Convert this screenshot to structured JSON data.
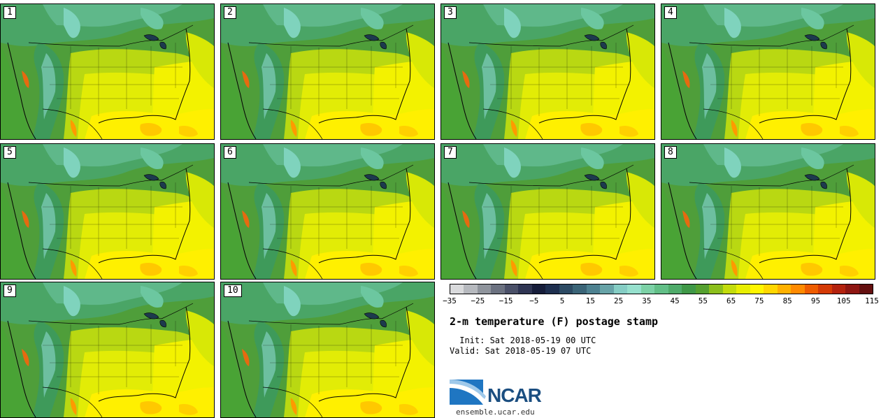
{
  "figure": {
    "title": "2-m temperature (F) postage stamp",
    "init_label": " Init: Sat 2018-05-19 00 UTC",
    "valid_label": "Valid: Sat 2018-05-19 07 UTC"
  },
  "members": [
    "1",
    "2",
    "3",
    "4",
    "5",
    "6",
    "7",
    "8",
    "9",
    "10"
  ],
  "colorbar": {
    "tick_labels": [
      "−35",
      "−25",
      "−15",
      "−5",
      "5",
      "15",
      "25",
      "35",
      "45",
      "55",
      "65",
      "75",
      "85",
      "95",
      "105",
      "115"
    ],
    "colors": [
      "#d9dadc",
      "#b6b9be",
      "#8f949c",
      "#6b7180",
      "#4a5068",
      "#2f3553",
      "#161d3a",
      "#1e2f4f",
      "#2c4a63",
      "#3a6477",
      "#4d8190",
      "#67a3a7",
      "#85cdc4",
      "#96e0cd",
      "#7cd1a6",
      "#62bf87",
      "#4fab6a",
      "#3f9847",
      "#55a030",
      "#8cbf1c",
      "#c3dc0c",
      "#e8ee02",
      "#fff600",
      "#ffd700",
      "#ffb100",
      "#ff8a00",
      "#ee5c00",
      "#d43a06",
      "#b3220e",
      "#8e1612",
      "#641010"
    ]
  },
  "logo": {
    "name": "NCAR",
    "site": "ensemble.ucar.edu"
  }
}
